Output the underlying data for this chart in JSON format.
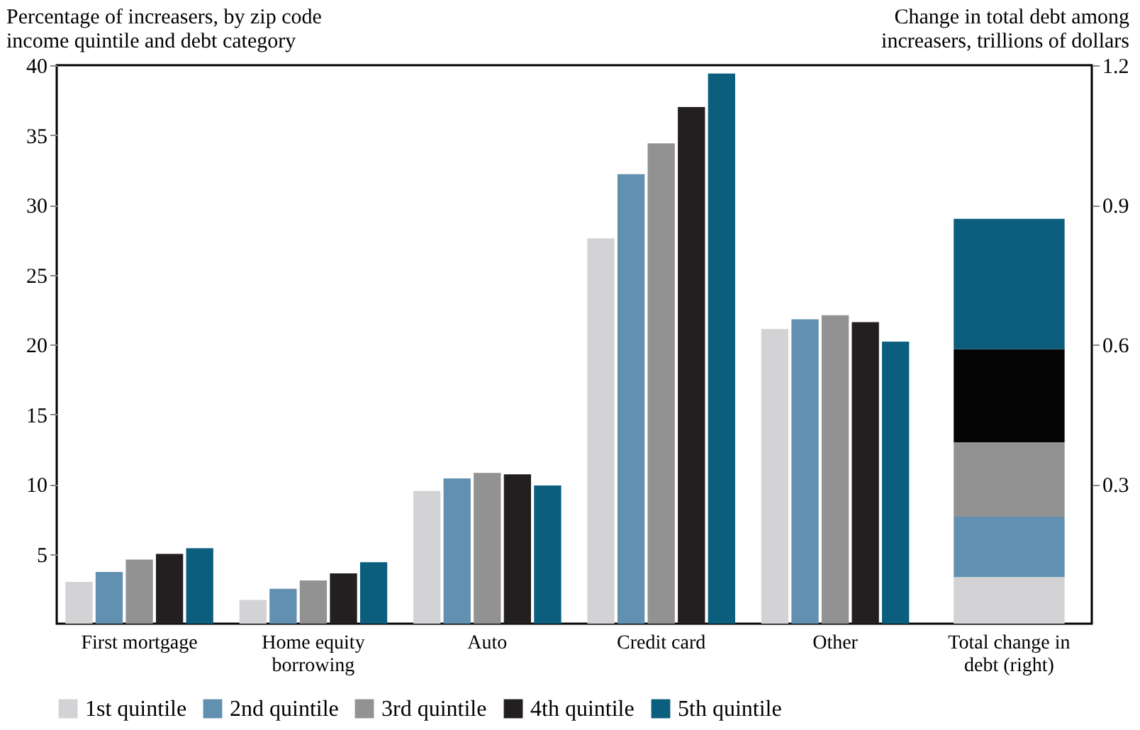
{
  "chart_data": {
    "type": "bar",
    "ylabel": "Percentage of increasers, by zip code income quintile and debt category",
    "y2label": "Change in total debt among increasers, trillions of dollars",
    "categories": [
      "First mortgage",
      "Home equity borrowing",
      "Auto",
      "Credit card",
      "Other",
      "Total change in debt (right)"
    ],
    "ylim": [
      0,
      40
    ],
    "yticks": [
      5,
      10,
      15,
      20,
      25,
      30,
      35,
      40
    ],
    "y2lim": [
      0,
      1.2
    ],
    "y2ticks": [
      0.3,
      0.6,
      0.9,
      1.2
    ],
    "legend": "bottom",
    "series": [
      {
        "name": "1st quintile",
        "color": "#d3d3d5",
        "values": [
          3.0,
          1.7,
          9.5,
          27.6,
          21.1,
          null
        ]
      },
      {
        "name": "2nd quintile",
        "color": "#6290b0",
        "values": [
          3.7,
          2.5,
          10.4,
          32.2,
          21.8,
          null
        ]
      },
      {
        "name": "3rd quintile",
        "color": "#929292",
        "values": [
          4.6,
          3.1,
          10.8,
          34.4,
          22.1,
          null
        ]
      },
      {
        "name": "4th quintile",
        "color": "#231f20",
        "values": [
          5.0,
          3.6,
          10.7,
          37.0,
          21.6,
          null
        ]
      },
      {
        "name": "5th quintile",
        "color": "#0b5e7e",
        "values": [
          5.4,
          4.4,
          9.9,
          39.4,
          20.2,
          null
        ]
      },
      {
        "axis": "y2",
        "color": "#d3d3d5",
        "base": [
          null,
          null,
          null,
          null,
          null,
          0
        ],
        "values": [
          null,
          null,
          null,
          null,
          null,
          0.1
        ]
      },
      {
        "axis": "y2",
        "color": "#6290b0",
        "base": [
          null,
          null,
          null,
          null,
          null,
          0.1
        ],
        "values": [
          null,
          null,
          null,
          null,
          null,
          0.13
        ]
      },
      {
        "axis": "y2",
        "color": "#929292",
        "base": [
          null,
          null,
          null,
          null,
          null,
          0.23
        ],
        "values": [
          null,
          null,
          null,
          null,
          null,
          0.16
        ]
      },
      {
        "axis": "y2",
        "color": "#050505",
        "base": [
          null,
          null,
          null,
          null,
          null,
          0.39
        ],
        "values": [
          null,
          null,
          null,
          null,
          null,
          0.2
        ]
      },
      {
        "axis": "y2",
        "color": "#0b5e7e",
        "base": [
          null,
          null,
          null,
          null,
          null,
          0.59
        ],
        "values": [
          null,
          null,
          null,
          null,
          null,
          0.28
        ]
      }
    ]
  }
}
